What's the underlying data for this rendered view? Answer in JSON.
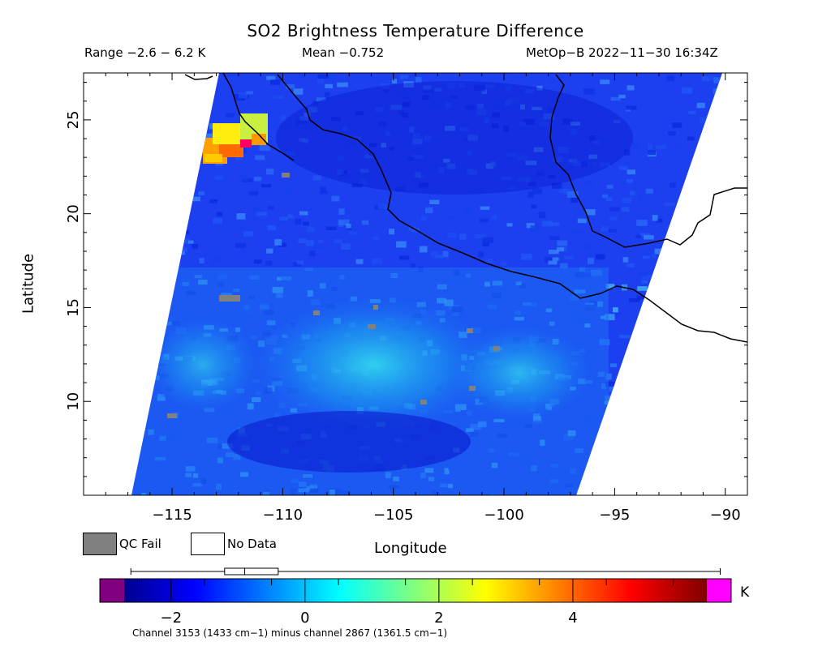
{
  "title": "SO2 Brightness Temperature Difference",
  "stats": {
    "range": "Range −2.6 − 6.2 K",
    "mean": "Mean −0.752",
    "satellite_time": "MetOp−B 2022−11−30 16:34Z"
  },
  "axes": {
    "xlabel": "Longitude",
    "ylabel": "Latitude",
    "x_ticks": [
      "−115",
      "−110",
      "−105",
      "−100",
      "−95",
      "−90"
    ],
    "x_tick_values": [
      -115,
      -110,
      -105,
      -100,
      -95,
      -90
    ],
    "y_ticks": [
      "10",
      "15",
      "20",
      "25"
    ],
    "y_tick_values": [
      10,
      15,
      20,
      25
    ],
    "xlim": [
      -119,
      -89
    ],
    "ylim": [
      5,
      27.5
    ]
  },
  "legend": {
    "qc_fail": "QC Fail",
    "no_data": "No Data",
    "qc_color": "#808080"
  },
  "colorbar": {
    "ticks": [
      "−2",
      "0",
      "2",
      "4"
    ],
    "tick_values": [
      -2,
      0,
      2,
      4
    ],
    "range": [
      -2.7,
      6.0
    ],
    "unit": "K",
    "caption": "Channel 3153 (1433 cm−1) minus channel 2867 (1361.5 cm−1)",
    "under_color": "#800080",
    "over_color": "#ff00ff",
    "box_whisker": {
      "min": -2.6,
      "q1": -1.2,
      "median": -0.9,
      "q3": -0.4,
      "max": 6.2
    }
  }
}
